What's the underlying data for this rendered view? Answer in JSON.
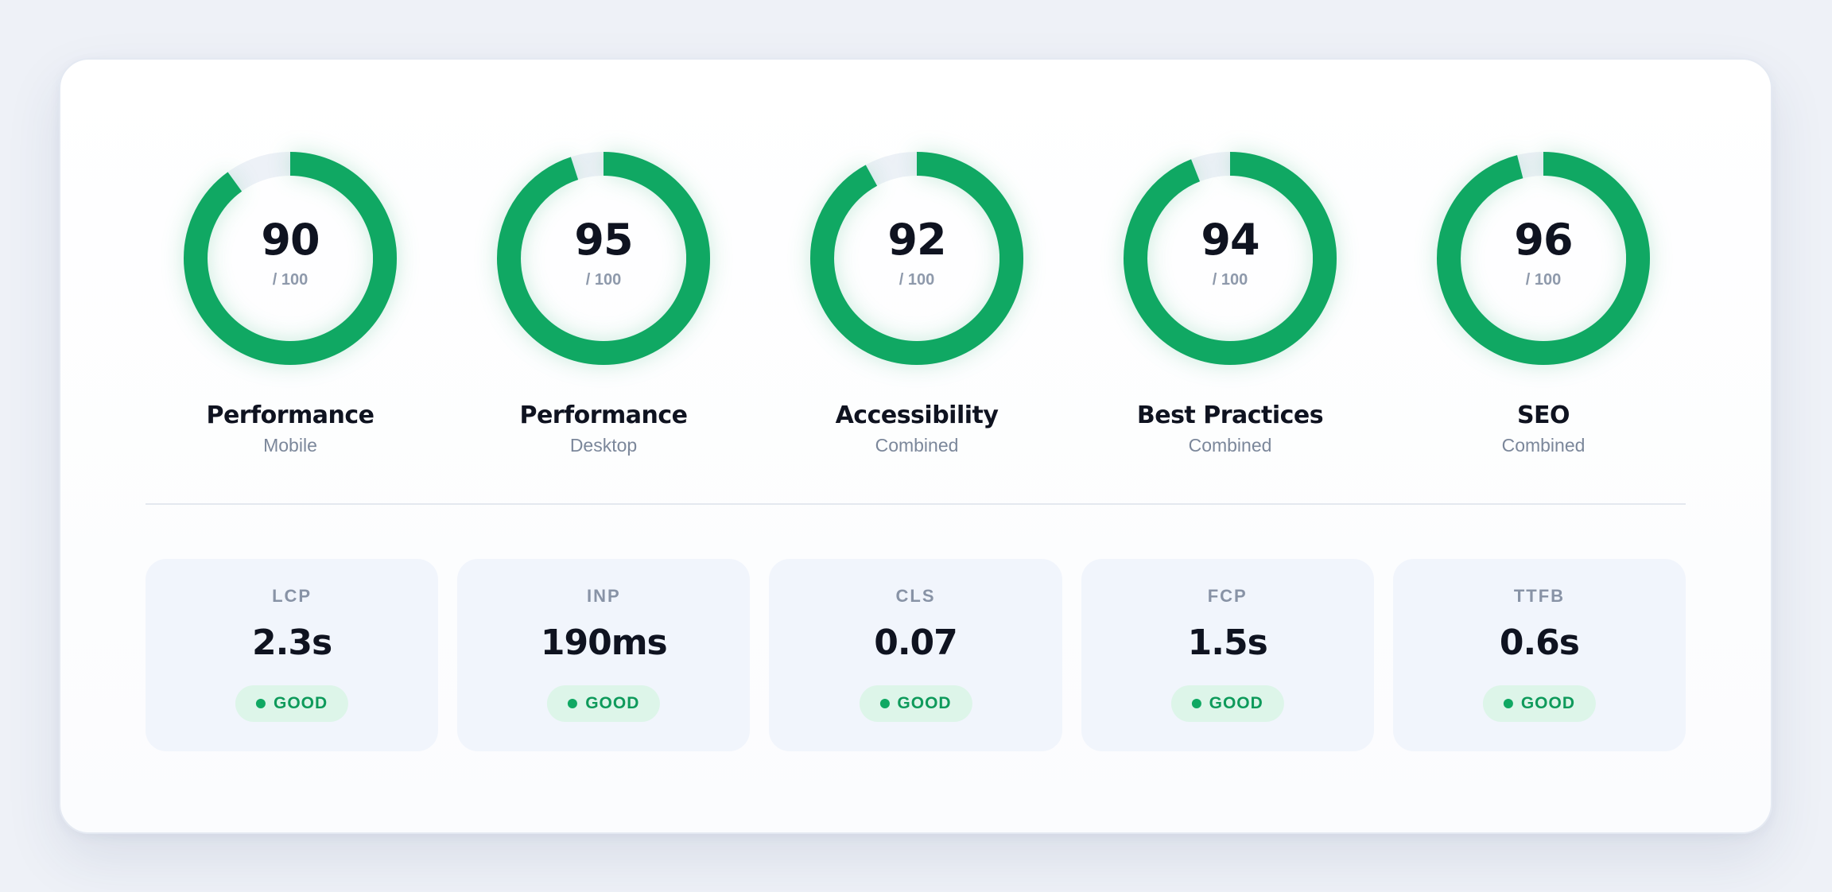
{
  "colors": {
    "accent": "#10a863",
    "track": "#edf1f7",
    "badge_bg": "#ddf5e9",
    "text_dark": "#0f1320",
    "text_muted": "#7b879a"
  },
  "gauges": [
    {
      "score": "90",
      "max": "/ 100",
      "title": "Performance",
      "subtitle": "Mobile",
      "value": 90
    },
    {
      "score": "95",
      "max": "/ 100",
      "title": "Performance",
      "subtitle": "Desktop",
      "value": 95
    },
    {
      "score": "92",
      "max": "/ 100",
      "title": "Accessibility",
      "subtitle": "Combined",
      "value": 92
    },
    {
      "score": "94",
      "max": "/ 100",
      "title": "Best Practices",
      "subtitle": "Combined",
      "value": 94
    },
    {
      "score": "96",
      "max": "/ 100",
      "title": "SEO",
      "subtitle": "Combined",
      "value": 96
    }
  ],
  "metrics": [
    {
      "label": "LCP",
      "value": "2.3s",
      "status": "GOOD"
    },
    {
      "label": "INP",
      "value": "190ms",
      "status": "GOOD"
    },
    {
      "label": "CLS",
      "value": "0.07",
      "status": "GOOD"
    },
    {
      "label": "FCP",
      "value": "1.5s",
      "status": "GOOD"
    },
    {
      "label": "TTFB",
      "value": "0.6s",
      "status": "GOOD"
    }
  ]
}
